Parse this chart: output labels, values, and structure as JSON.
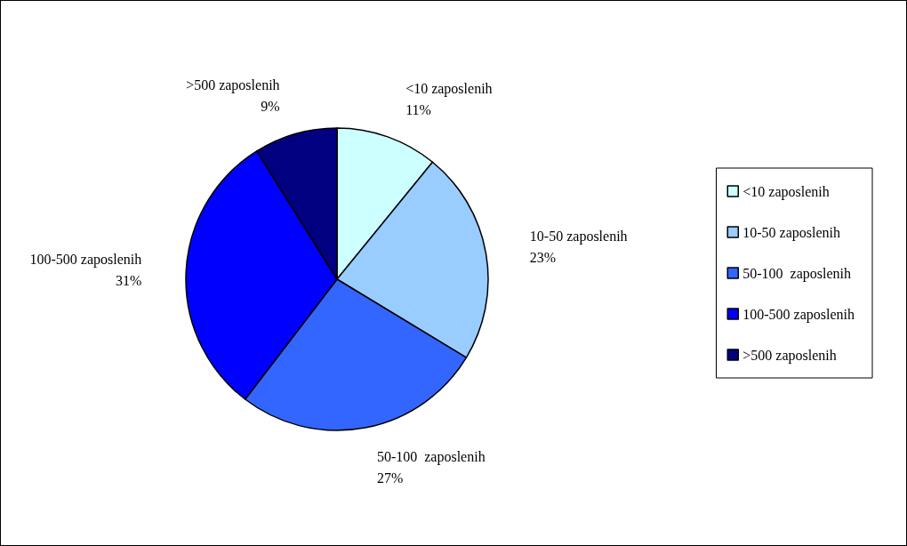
{
  "chart_data": {
    "type": "pie",
    "categories": [
      "<10 zaposlenih",
      "10-50 zaposlenih",
      "50-100  zaposlenih",
      "100-500 zaposlenih",
      ">500 zaposlenih"
    ],
    "values": [
      11,
      23,
      27,
      31,
      9
    ],
    "colors": [
      "#ccffff",
      "#99ccff",
      "#3366ff",
      "#0000ff",
      "#000080"
    ],
    "value_labels": [
      "11%",
      "23%",
      "27%",
      "31%",
      "9%"
    ],
    "legend": "right"
  }
}
